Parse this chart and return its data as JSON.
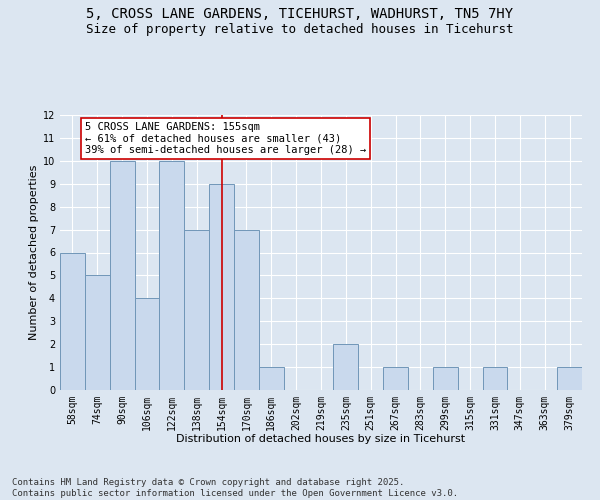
{
  "title_line1": "5, CROSS LANE GARDENS, TICEHURST, WADHURST, TN5 7HY",
  "title_line2": "Size of property relative to detached houses in Ticehurst",
  "xlabel": "Distribution of detached houses by size in Ticehurst",
  "ylabel": "Number of detached properties",
  "categories": [
    "58sqm",
    "74sqm",
    "90sqm",
    "106sqm",
    "122sqm",
    "138sqm",
    "154sqm",
    "170sqm",
    "186sqm",
    "202sqm",
    "219sqm",
    "235sqm",
    "251sqm",
    "267sqm",
    "283sqm",
    "299sqm",
    "315sqm",
    "331sqm",
    "347sqm",
    "363sqm",
    "379sqm"
  ],
  "values": [
    6,
    5,
    10,
    4,
    10,
    7,
    9,
    7,
    1,
    0,
    0,
    2,
    0,
    1,
    0,
    1,
    0,
    1,
    0,
    0,
    1
  ],
  "bar_color": "#c9d9ed",
  "bar_edge_color": "#7096b8",
  "vline_index": 6,
  "vline_color": "#cc0000",
  "annotation_text": "5 CROSS LANE GARDENS: 155sqm\n← 61% of detached houses are smaller (43)\n39% of semi-detached houses are larger (28) →",
  "annotation_box_color": "white",
  "annotation_box_edge_color": "#cc0000",
  "ylim": [
    0,
    12
  ],
  "yticks": [
    0,
    1,
    2,
    3,
    4,
    5,
    6,
    7,
    8,
    9,
    10,
    11,
    12
  ],
  "background_color": "#dce6f1",
  "grid_color": "white",
  "footer_text": "Contains HM Land Registry data © Crown copyright and database right 2025.\nContains public sector information licensed under the Open Government Licence v3.0.",
  "title_fontsize": 10,
  "subtitle_fontsize": 9,
  "annotation_fontsize": 7.5,
  "footer_fontsize": 6.5,
  "axis_label_fontsize": 8,
  "tick_fontsize": 7
}
